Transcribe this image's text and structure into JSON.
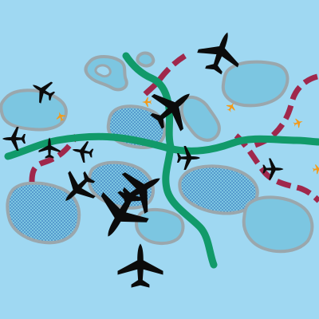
{
  "colors": {
    "background": "#9fd8f2",
    "island_fill": "#7cc6e1",
    "island_stroke": "#9aa7ad",
    "hatch": "#3b7cc0",
    "river": "#119a6a",
    "road_dashed": "#a0284c",
    "aircraft": "#0b0b0b",
    "marker": "#f39a1a"
  },
  "icons": {
    "aircraft": "jet-aircraft-icon",
    "marker": "small-plane-marker-icon"
  }
}
